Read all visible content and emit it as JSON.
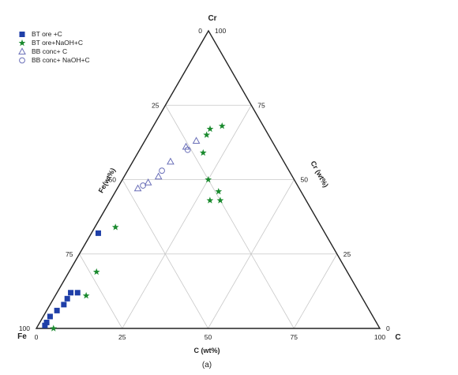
{
  "chart_data": {
    "type": "scatter",
    "subtype": "ternary",
    "title": "",
    "caption": "(a)",
    "vertices": {
      "top": "Cr",
      "left": "Fe",
      "right": "C"
    },
    "axis_labels": {
      "left_edge": "Fe(wt%)",
      "right_edge": "Cr (wt%)",
      "bottom_edge": "C (wt%)"
    },
    "range": [
      0,
      100
    ],
    "ticks": [
      0,
      25,
      50,
      75,
      100
    ],
    "grid": true,
    "legend_position": "top-left",
    "series": [
      {
        "name": "BT ore +C",
        "marker": "filled-square",
        "color": "#1f3fa8",
        "points": [
          {
            "C": 2,
            "Cr": 32,
            "Fe": 66
          },
          {
            "C": 6,
            "Cr": 12,
            "Fe": 82
          },
          {
            "C": 4,
            "Cr": 10,
            "Fe": 86
          },
          {
            "C": 4,
            "Cr": 12,
            "Fe": 84
          },
          {
            "C": 4,
            "Cr": 8,
            "Fe": 88
          },
          {
            "C": 3,
            "Cr": 6,
            "Fe": 91
          },
          {
            "C": 2,
            "Cr": 4,
            "Fe": 94
          },
          {
            "C": 2,
            "Cr": 2,
            "Fe": 96
          },
          {
            "C": 2,
            "Cr": 1,
            "Fe": 97
          }
        ]
      },
      {
        "name": "BT ore+NaOH+C",
        "marker": "star",
        "color": "#1a8a2e",
        "points": [
          {
            "C": 20,
            "Cr": 68,
            "Fe": 12
          },
          {
            "C": 17,
            "Cr": 67,
            "Fe": 16
          },
          {
            "C": 17,
            "Cr": 65,
            "Fe": 18
          },
          {
            "C": 19,
            "Cr": 59,
            "Fe": 22
          },
          {
            "C": 25,
            "Cr": 50,
            "Fe": 25
          },
          {
            "C": 30,
            "Cr": 46,
            "Fe": 24
          },
          {
            "C": 29,
            "Cr": 43,
            "Fe": 28
          },
          {
            "C": 32,
            "Cr": 43,
            "Fe": 25
          },
          {
            "C": 6,
            "Cr": 34,
            "Fe": 60
          },
          {
            "C": 8,
            "Cr": 19,
            "Fe": 73
          },
          {
            "C": 9,
            "Cr": 11,
            "Fe": 80
          },
          {
            "C": 5,
            "Cr": 0,
            "Fe": 95
          }
        ]
      },
      {
        "name": "BB conc+ C",
        "marker": "open-triangle",
        "color": "#6a6fb8",
        "points": [
          {
            "C": 15,
            "Cr": 63,
            "Fe": 22
          },
          {
            "C": 13,
            "Cr": 61,
            "Fe": 26
          },
          {
            "C": 11,
            "Cr": 56,
            "Fe": 33
          },
          {
            "C": 8,
            "Cr": 49,
            "Fe": 43
          },
          {
            "C": 10,
            "Cr": 51,
            "Fe": 39
          },
          {
            "C": 6,
            "Cr": 47,
            "Fe": 47
          }
        ]
      },
      {
        "name": "BB conc+ NaOH+C",
        "marker": "open-circle",
        "color": "#6a6fb8",
        "points": [
          {
            "C": 14,
            "Cr": 60,
            "Fe": 26
          },
          {
            "C": 10,
            "Cr": 53,
            "Fe": 37
          },
          {
            "C": 7,
            "Cr": 48,
            "Fe": 45
          }
        ]
      }
    ]
  }
}
